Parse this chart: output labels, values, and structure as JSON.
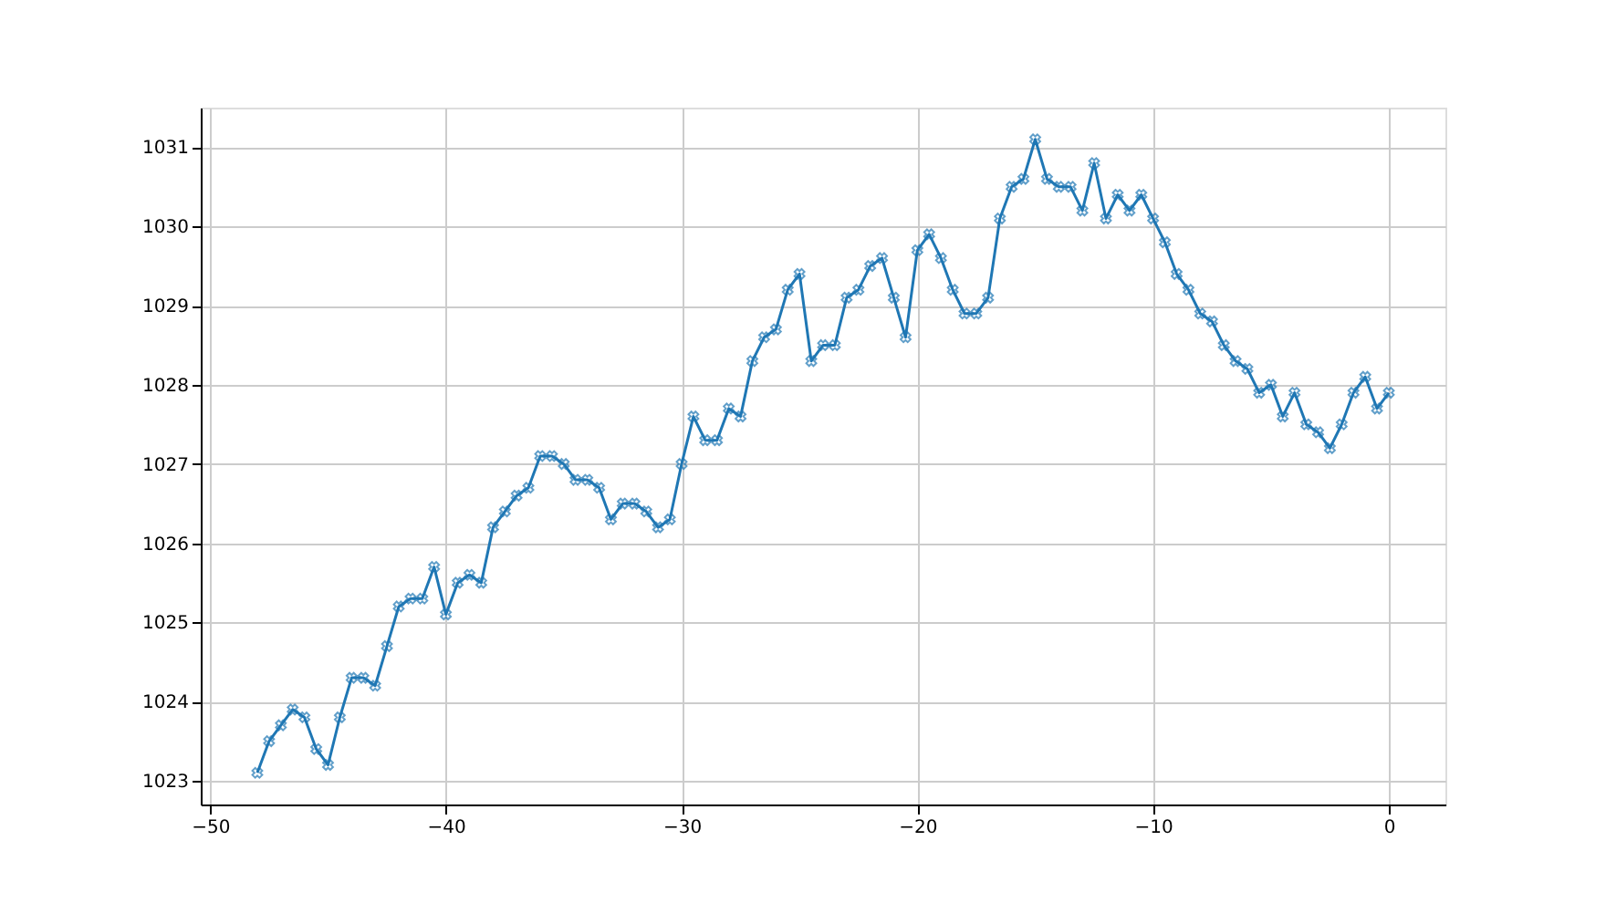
{
  "chart_data": {
    "type": "line",
    "marker": "cross",
    "line_style": "solid",
    "grid": true,
    "xlim": [
      -50.4,
      2.4
    ],
    "xticks": [
      -50,
      -40,
      -30,
      -20,
      -10,
      0
    ],
    "ylim": [
      1022.7,
      1031.5
    ],
    "yticks": [
      1023,
      1024,
      1025,
      1026,
      1027,
      1028,
      1029,
      1030,
      1031
    ],
    "x": [
      -48,
      -47.5,
      -47,
      -46.5,
      -46,
      -45.5,
      -45,
      -44.5,
      -44,
      -43.5,
      -43,
      -42.5,
      -42,
      -41.5,
      -41,
      -40.5,
      -40,
      -39.5,
      -39,
      -38.5,
      -38,
      -37.5,
      -37,
      -36.5,
      -36,
      -35.5,
      -35,
      -34.5,
      -34,
      -33.5,
      -33,
      -32.5,
      -32,
      -31.5,
      -31,
      -30.5,
      -30,
      -29.5,
      -29,
      -28.5,
      -28,
      -27.5,
      -27,
      -26.5,
      -26,
      -25.5,
      -25,
      -24.5,
      -24,
      -23.5,
      -23,
      -22.5,
      -22,
      -21.5,
      -21,
      -20.5,
      -20,
      -19.5,
      -19,
      -18.5,
      -18,
      -17.5,
      -17,
      -16.5,
      -16,
      -15.5,
      -15,
      -14.5,
      -14,
      -13.5,
      -13,
      -12.5,
      -12,
      -11.5,
      -11,
      -10.5,
      -10,
      -9.5,
      -9,
      -8.5,
      -8,
      -7.5,
      -7,
      -6.5,
      -6,
      -5.5,
      -5,
      -4.5,
      -4,
      -3.5,
      -3,
      -2.5,
      -2,
      -1.5,
      -1,
      -0.5,
      0
    ],
    "series": [
      {
        "color": "#1f77b4",
        "values": [
          1023.1,
          1023.5,
          1023.7,
          1023.9,
          1023.8,
          1023.4,
          1023.2,
          1023.8,
          1024.3,
          1024.3,
          1024.2,
          1024.7,
          1025.2,
          1025.3,
          1025.3,
          1025.7,
          1025.1,
          1025.5,
          1025.6,
          1025.5,
          1026.2,
          1026.4,
          1026.6,
          1026.7,
          1027.1,
          1027.1,
          1027.0,
          1026.8,
          1026.8,
          1026.7,
          1026.3,
          1026.5,
          1026.5,
          1026.4,
          1026.2,
          1026.3,
          1027.0,
          1027.6,
          1027.3,
          1027.3,
          1027.7,
          1027.6,
          1028.3,
          1028.6,
          1028.7,
          1029.2,
          1029.4,
          1028.3,
          1028.5,
          1028.5,
          1029.1,
          1029.2,
          1029.5,
          1029.6,
          1029.1,
          1028.6,
          1029.7,
          1029.9,
          1029.6,
          1029.2,
          1028.9,
          1028.9,
          1029.1,
          1030.1,
          1030.5,
          1030.6,
          1031.1,
          1030.6,
          1030.5,
          1030.5,
          1030.2,
          1030.8,
          1030.1,
          1030.4,
          1030.2,
          1030.4,
          1030.1,
          1029.8,
          1029.4,
          1029.2,
          1028.9,
          1028.8,
          1028.5,
          1028.3,
          1028.2,
          1027.9,
          1028.0,
          1027.6,
          1027.9,
          1027.5,
          1027.4,
          1027.2,
          1027.5,
          1027.9,
          1028.1,
          1027.7,
          1027.9
        ]
      }
    ]
  }
}
